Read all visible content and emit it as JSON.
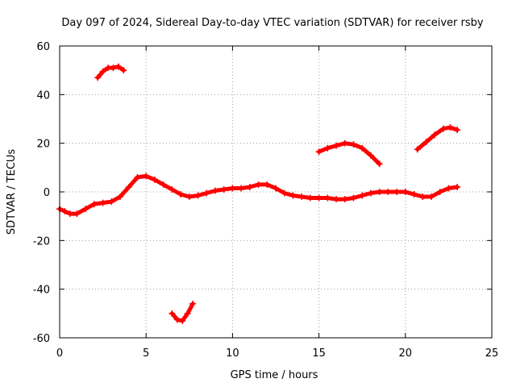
{
  "chart_data": {
    "type": "scatter",
    "title": "Day 097 of 2024, Sidereal Day-to-day VTEC variation (SDTVAR) for receiver rsby",
    "xlabel": "GPS time / hours",
    "ylabel": "SDTVAR / TECUs",
    "xlim": [
      0,
      25
    ],
    "ylim": [
      -60,
      60
    ],
    "xticks": [
      0,
      5,
      10,
      15,
      20,
      25
    ],
    "yticks": [
      -60,
      -40,
      -20,
      0,
      20,
      40,
      60
    ],
    "xtick_labels": [
      "0",
      "5",
      "10",
      "15",
      "20",
      "25"
    ],
    "ytick_labels": [
      "-60",
      "-40",
      "-20",
      "0",
      "20",
      "40",
      "60"
    ],
    "grid": true,
    "color": "#ff0000",
    "series": [
      {
        "name": "main-band",
        "x": [
          0.0,
          0.3,
          0.6,
          1.0,
          1.5,
          2.0,
          2.5,
          3.0,
          3.5,
          4.0,
          4.5,
          5.0,
          5.5,
          6.0,
          6.5,
          7.0,
          7.5,
          8.0,
          8.5,
          9.0,
          9.5,
          10.0,
          10.5,
          11.0,
          11.5,
          12.0,
          12.5,
          13.0,
          13.5,
          14.0,
          14.5,
          15.0,
          15.5,
          16.0,
          16.5,
          17.0,
          17.5,
          18.0,
          18.5,
          19.0,
          19.5,
          20.0,
          20.5,
          21.0,
          21.5,
          22.0,
          22.5,
          23.0
        ],
        "y": [
          -7,
          -8,
          -9,
          -9,
          -7,
          -5,
          -4.5,
          -4,
          -2,
          2,
          6,
          6.5,
          5,
          3,
          1,
          -1,
          -2,
          -1.5,
          -0.5,
          0.5,
          1,
          1.5,
          1.5,
          2,
          3,
          3,
          1.5,
          -0.5,
          -1.5,
          -2,
          -2.5,
          -2.5,
          -2.5,
          -3,
          -3,
          -2.5,
          -1.5,
          -0.5,
          0,
          0,
          0,
          0,
          -1,
          -2,
          -2,
          0,
          1.5,
          2
        ]
      },
      {
        "name": "seg-upper-left",
        "x": [
          2.2,
          2.5,
          2.8,
          3.1,
          3.4,
          3.7
        ],
        "y": [
          47,
          49.5,
          51,
          51,
          51.5,
          50
        ]
      },
      {
        "name": "seg-lower",
        "x": [
          6.5,
          6.8,
          7.1,
          7.4,
          7.7
        ],
        "y": [
          -50,
          -52.5,
          -53,
          -50,
          -46
        ]
      },
      {
        "name": "seg-mid-right",
        "x": [
          15.0,
          15.5,
          16.0,
          16.5,
          17.0,
          17.5,
          18.0,
          18.5
        ],
        "y": [
          16.5,
          18,
          19,
          20,
          19.5,
          18,
          15,
          11.5
        ]
      },
      {
        "name": "seg-upper-right",
        "x": [
          20.7,
          21.2,
          21.7,
          22.2,
          22.6,
          23.0
        ],
        "y": [
          17.5,
          20.5,
          23.5,
          26,
          26.5,
          25.5
        ]
      }
    ]
  }
}
